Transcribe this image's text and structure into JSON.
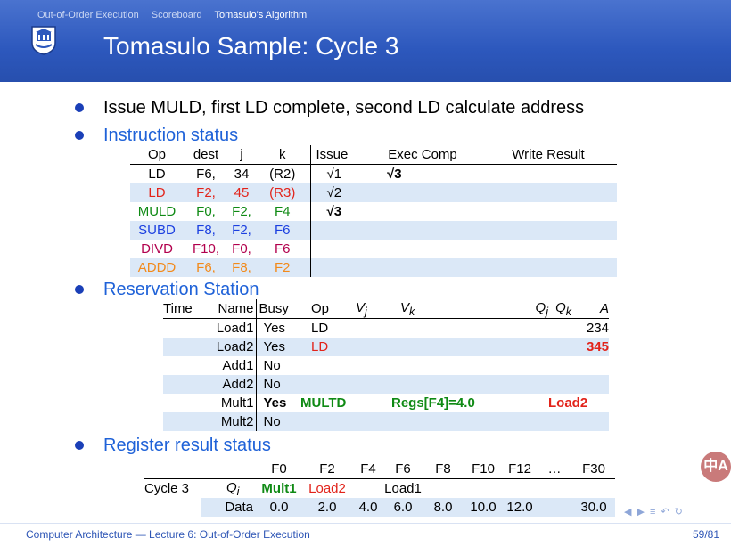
{
  "header": {
    "nav": [
      "Out-of-Order Execution",
      "Scoreboard",
      "Tomasulo's Algorithm"
    ],
    "title": "Tomasulo Sample: Cycle 3"
  },
  "bullets": {
    "b1": "Issue MULD, first LD complete, second LD calculate address",
    "b2": "Instruction status",
    "b3": "Reservation Station",
    "b4": "Register result status"
  },
  "instr": {
    "headers": [
      "Op",
      "dest",
      "j",
      "k",
      "Issue",
      "Exec Comp",
      "Write Result"
    ],
    "rows": [
      {
        "op": "LD",
        "dest": "F6,",
        "j": "34",
        "k": "(R2)",
        "issue": "√1",
        "exec": "√3",
        "write": ""
      },
      {
        "op": "LD",
        "dest": "F2,",
        "j": "45",
        "k": "(R3)",
        "issue": "√2",
        "exec": "",
        "write": ""
      },
      {
        "op": "MULD",
        "dest": "F0,",
        "j": "F2,",
        "k": "F4",
        "issue": "√3",
        "exec": "",
        "write": ""
      },
      {
        "op": "SUBD",
        "dest": "F8,",
        "j": "F2,",
        "k": "F6",
        "issue": "",
        "exec": "",
        "write": ""
      },
      {
        "op": "DIVD",
        "dest": "F10,",
        "j": "F0,",
        "k": "F6",
        "issue": "",
        "exec": "",
        "write": ""
      },
      {
        "op": "ADDD",
        "dest": "F6,",
        "j": "F8,",
        "k": "F2",
        "issue": "",
        "exec": "",
        "write": ""
      }
    ]
  },
  "rs": {
    "headers": {
      "time": "Time",
      "name": "Name",
      "busy": "Busy",
      "op": "Op",
      "vj": "V",
      "vj_sub": "j",
      "vk": "V",
      "vk_sub": "k",
      "qj": "Q",
      "qj_sub": "j",
      "qk": "Q",
      "qk_sub": "k",
      "a": "A"
    },
    "rows": [
      {
        "name": "Load1",
        "busy": "Yes",
        "op": "LD",
        "vk": "",
        "qj": "",
        "a": "234"
      },
      {
        "name": "Load2",
        "busy": "Yes",
        "op": "LD",
        "vk": "",
        "qj": "",
        "a": "345"
      },
      {
        "name": "Add1",
        "busy": "No",
        "op": "",
        "vk": "",
        "qj": "",
        "a": ""
      },
      {
        "name": "Add2",
        "busy": "No",
        "op": "",
        "vk": "",
        "qj": "",
        "a": ""
      },
      {
        "name": "Mult1",
        "busy": "Yes",
        "op": "MULTD",
        "vk": "Regs[F4]=4.0",
        "qj": "Load2",
        "a": ""
      },
      {
        "name": "Mult2",
        "busy": "No",
        "op": "",
        "vk": "",
        "qj": "",
        "a": ""
      }
    ]
  },
  "reg": {
    "regs": [
      "F0",
      "F2",
      "F4",
      "F6",
      "F8",
      "F10",
      "F12",
      "…",
      "F30"
    ],
    "cycle": "Cycle 3",
    "qi_label": "Q",
    "qi_sub": "i",
    "qi": [
      "Mult1",
      "Load2",
      "",
      "Load1",
      "",
      "",
      "",
      "",
      ""
    ],
    "data_label": "Data",
    "data": [
      "0.0",
      "2.0",
      "4.0",
      "6.0",
      "8.0",
      "10.0",
      "12.0",
      "",
      "30.0"
    ]
  },
  "footer": {
    "left": "Computer Architecture — Lecture 6: Out-of-Order Execution",
    "right": "59/81"
  },
  "translate_label": "中A"
}
